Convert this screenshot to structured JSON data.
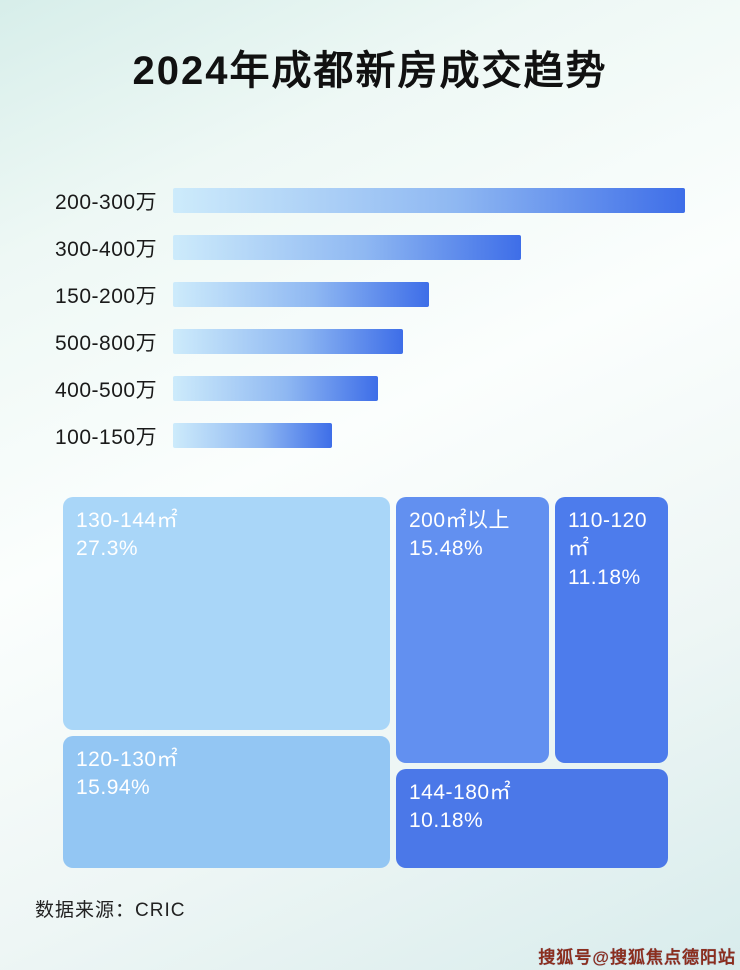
{
  "page": {
    "title": "2024年成都新房成交趋势",
    "source_label": "数据来源：CRIC",
    "watermark": "搜狐号@搜狐焦点德阳站"
  },
  "colors": {
    "bar_gradient_start": "#cdebfb",
    "bar_gradient_end": "#3e6ee8",
    "title_text": "#111111",
    "label_text": "#1a1a1a",
    "source_text": "#222222",
    "watermark_text": "#8b2e1d"
  },
  "chart_data": [
    {
      "type": "bar",
      "orientation": "horizontal",
      "title": "2024年成都新房成交趋势",
      "categories": [
        "200-300万",
        "300-400万",
        "150-200万",
        "500-800万",
        "400-500万",
        "100-150万"
      ],
      "values": [
        100,
        68,
        50,
        45,
        40,
        31
      ],
      "xlabel": "",
      "ylabel": "",
      "grid": false,
      "legend": false
    },
    {
      "type": "treemap",
      "title": "",
      "items": [
        {
          "label": "130-144㎡",
          "value": 27.3,
          "display": "27.3%",
          "color": "#a9d6f8"
        },
        {
          "label": "120-130㎡",
          "value": 15.94,
          "display": "15.94%",
          "color": "#93c6f3"
        },
        {
          "label": "200㎡以上",
          "value": 15.48,
          "display": "15.48%",
          "color": "#6290f0"
        },
        {
          "label": "110-120㎡",
          "value": 11.18,
          "display": "11.18%",
          "color": "#4d7cec"
        },
        {
          "label": "144-180㎡",
          "value": 10.18,
          "display": "10.18%",
          "color": "#4b78e8"
        }
      ]
    }
  ]
}
